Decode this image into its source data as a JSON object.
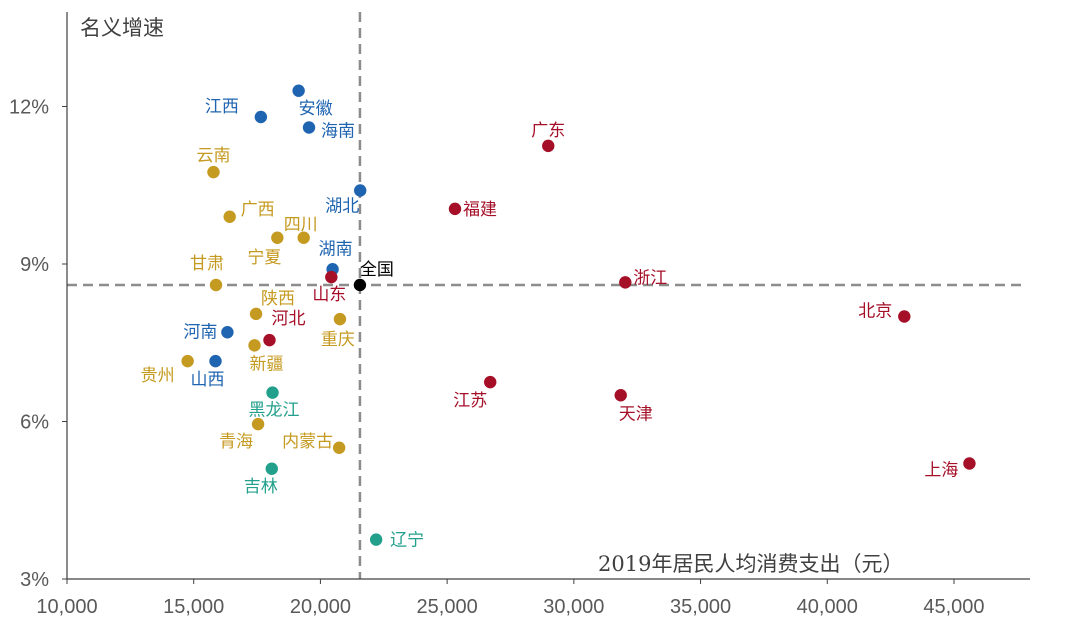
{
  "chart_data": {
    "type": "scatter",
    "title": "",
    "xlabel": "2019年居民人均消费支出（元）",
    "ylabel": "名义增速",
    "xlim": [
      10000,
      48000
    ],
    "ylim": [
      3,
      13.8
    ],
    "x_ticks": [
      10000,
      15000,
      20000,
      25000,
      30000,
      35000,
      40000,
      45000
    ],
    "x_tick_labels": [
      "10,000",
      "15,000",
      "20,000",
      "25,000",
      "30,000",
      "35,000",
      "40,000",
      "45,000"
    ],
    "y_ticks": [
      3,
      6,
      9,
      12
    ],
    "y_tick_labels": [
      "3%",
      "6%",
      "9%",
      "12%"
    ],
    "reference_lines": {
      "x": 21559,
      "y": 8.6,
      "style": "dashed",
      "color": "#8c8c8c"
    },
    "grid": false,
    "legend": "none",
    "colors": {
      "blue": "#1f64b0",
      "gold": "#c59a20",
      "red": "#a50f28",
      "teal": "#23a08c",
      "black": "#000000"
    },
    "points": [
      {
        "name": "江西",
        "x": 17650,
        "y": 11.8,
        "color": "blue",
        "lx": -22,
        "ly": -5,
        "anchor": "end"
      },
      {
        "name": "安徽",
        "x": 19140,
        "y": 12.3,
        "color": "blue",
        "lx": 0,
        "ly": 23,
        "anchor": "start"
      },
      {
        "name": "海南",
        "x": 19550,
        "y": 11.6,
        "color": "blue",
        "lx": 12,
        "ly": 9,
        "anchor": "start"
      },
      {
        "name": "湖北",
        "x": 21570,
        "y": 10.4,
        "color": "blue",
        "lx": -35,
        "ly": 21,
        "anchor": "start"
      },
      {
        "name": "湖南",
        "x": 20480,
        "y": 8.9,
        "color": "blue",
        "lx": -14,
        "ly": -15,
        "anchor": "start"
      },
      {
        "name": "河南",
        "x": 16330,
        "y": 7.7,
        "color": "blue",
        "lx": -10,
        "ly": 5,
        "anchor": "end"
      },
      {
        "name": "山西",
        "x": 15860,
        "y": 7.15,
        "color": "blue",
        "lx": -25,
        "ly": 24,
        "anchor": "start"
      },
      {
        "name": "广东",
        "x": 28990,
        "y": 11.25,
        "color": "red",
        "lx": -17,
        "ly": -10,
        "anchor": "start"
      },
      {
        "name": "福建",
        "x": 25310,
        "y": 10.05,
        "color": "red",
        "lx": 8,
        "ly": 6,
        "anchor": "start"
      },
      {
        "name": "浙江",
        "x": 32030,
        "y": 8.65,
        "color": "red",
        "lx": 8,
        "ly": 1,
        "anchor": "start"
      },
      {
        "name": "北京",
        "x": 43040,
        "y": 8.0,
        "color": "red",
        "lx": -12,
        "ly": 0,
        "anchor": "end"
      },
      {
        "name": "山东",
        "x": 20430,
        "y": 8.75,
        "color": "red",
        "lx": -19,
        "ly": 23,
        "anchor": "start"
      },
      {
        "name": "河北",
        "x": 17990,
        "y": 7.55,
        "color": "red",
        "lx": 2,
        "ly": -16,
        "anchor": "start"
      },
      {
        "name": "江苏",
        "x": 26700,
        "y": 6.75,
        "color": "red",
        "lx": -37,
        "ly": 24,
        "anchor": "start"
      },
      {
        "name": "天津",
        "x": 31850,
        "y": 6.5,
        "color": "red",
        "lx": -2,
        "ly": 24,
        "anchor": "start"
      },
      {
        "name": "上海",
        "x": 45610,
        "y": 5.2,
        "color": "red",
        "lx": -11,
        "ly": 12,
        "anchor": "end"
      },
      {
        "name": "云南",
        "x": 15780,
        "y": 10.75,
        "color": "gold",
        "lx": -17,
        "ly": -11,
        "anchor": "start"
      },
      {
        "name": "广西",
        "x": 16420,
        "y": 9.9,
        "color": "gold",
        "lx": 11,
        "ly": -2,
        "anchor": "start"
      },
      {
        "name": "四川",
        "x": 19340,
        "y": 9.5,
        "color": "gold",
        "lx": -20,
        "ly": -8,
        "anchor": "start"
      },
      {
        "name": "宁夏",
        "x": 18300,
        "y": 9.5,
        "color": "gold",
        "lx": -30,
        "ly": 25,
        "anchor": "start"
      },
      {
        "name": "甘肃",
        "x": 15880,
        "y": 8.6,
        "color": "gold",
        "lx": -26,
        "ly": -16,
        "anchor": "start"
      },
      {
        "name": "陕西",
        "x": 17460,
        "y": 8.05,
        "color": "gold",
        "lx": 5,
        "ly": -10,
        "anchor": "start"
      },
      {
        "name": "重庆",
        "x": 20770,
        "y": 7.95,
        "color": "gold",
        "lx": -19,
        "ly": 26,
        "anchor": "start"
      },
      {
        "name": "新疆",
        "x": 17400,
        "y": 7.45,
        "color": "gold",
        "lx": -5,
        "ly": 24,
        "anchor": "start"
      },
      {
        "name": "贵州",
        "x": 14760,
        "y": 7.15,
        "color": "gold",
        "lx": -13,
        "ly": 20,
        "anchor": "end"
      },
      {
        "name": "青海",
        "x": 17540,
        "y": 5.95,
        "color": "gold",
        "lx": -5,
        "ly": 23,
        "anchor": "end"
      },
      {
        "name": "内蒙古",
        "x": 20740,
        "y": 5.5,
        "color": "gold",
        "lx": -6,
        "ly": -1,
        "anchor": "end"
      },
      {
        "name": "黑龙江",
        "x": 18110,
        "y": 6.55,
        "color": "teal",
        "lx": -24,
        "ly": 23,
        "anchor": "start"
      },
      {
        "name": "吉林",
        "x": 18080,
        "y": 5.1,
        "color": "teal",
        "lx": -28,
        "ly": 23,
        "anchor": "start"
      },
      {
        "name": "辽宁",
        "x": 22200,
        "y": 3.75,
        "color": "teal",
        "lx": 14,
        "ly": 6,
        "anchor": "start"
      },
      {
        "name": "全国",
        "x": 21559,
        "y": 8.6,
        "color": "black",
        "lx": 0,
        "ly": -10,
        "anchor": "start"
      }
    ]
  }
}
